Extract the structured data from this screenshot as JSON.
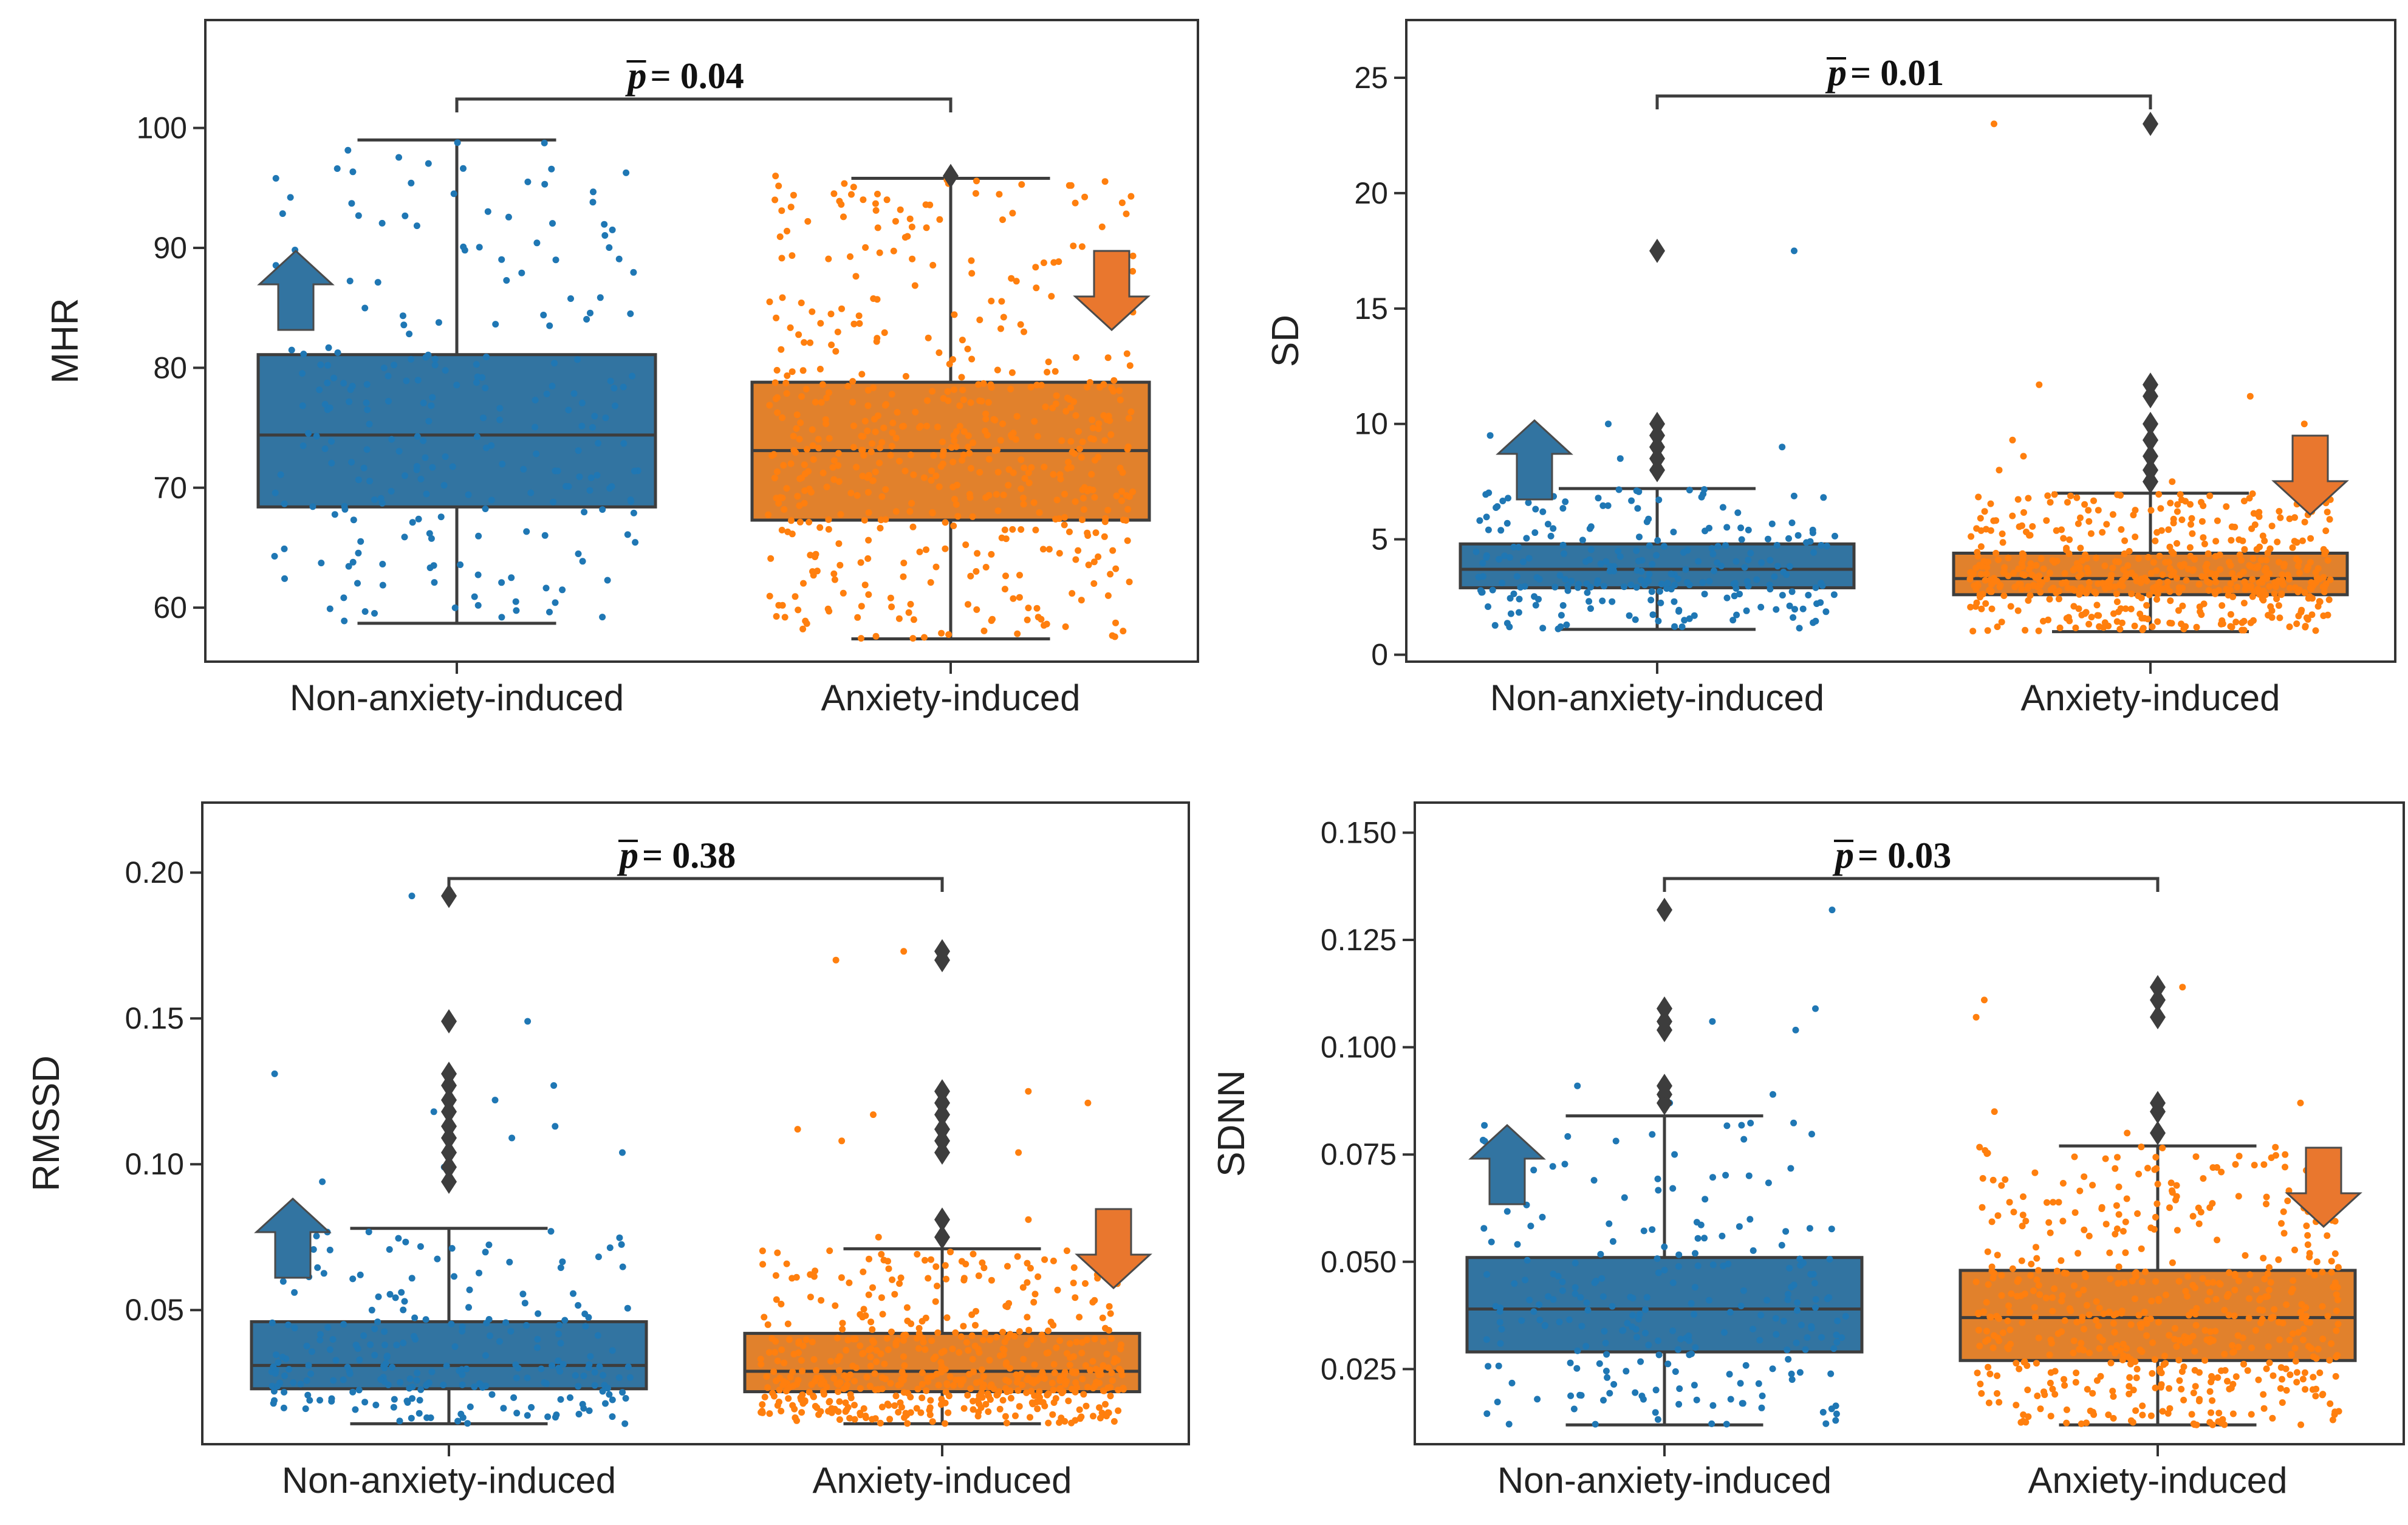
{
  "colors": {
    "non_anxiety": "#1f77b4",
    "non_anxiety_box": "#3274a1",
    "anxiety": "#ff7f0e",
    "anxiety_box": "#e1812c",
    "arrow_blue": "#3274a1",
    "arrow_orange": "#e9772e",
    "line": "#3d3d3d"
  },
  "chart_data": [
    {
      "type": "box",
      "ylabel": "MHR",
      "categories": [
        "Non-anxiety-induced",
        "Anxiety-induced"
      ],
      "ylim": [
        55.5,
        109
      ],
      "yticks": [
        60,
        70,
        80,
        90,
        100
      ],
      "ytick_labels": [
        "60",
        "70",
        "80",
        "90",
        "100"
      ],
      "p_value": "= 0.04",
      "arrows": [
        "up",
        "down"
      ],
      "series": [
        {
          "name": "Non-anxiety-induced",
          "n_points": 240,
          "whisker_low": 58.7,
          "q1": 68.4,
          "median": 74.4,
          "q3": 81.1,
          "whisker_high": 99.0,
          "outliers": []
        },
        {
          "name": "Anxiety-induced",
          "n_points": 560,
          "whisker_low": 57.4,
          "q1": 67.3,
          "median": 73.1,
          "q3": 78.8,
          "whisker_high": 95.8,
          "outliers": [
            96.0
          ]
        }
      ]
    },
    {
      "type": "box",
      "ylabel": "SD",
      "categories": [
        "Non-anxiety-induced",
        "Anxiety-induced"
      ],
      "ylim": [
        -0.3,
        27.5
      ],
      "yticks": [
        0,
        5,
        10,
        15,
        20,
        25
      ],
      "ytick_labels": [
        "0",
        "5",
        "10",
        "15",
        "20",
        "25"
      ],
      "p_value": "= 0.01",
      "arrows": [
        "up",
        "down"
      ],
      "series": [
        {
          "name": "Non-anxiety-induced",
          "n_points": 240,
          "whisker_low": 1.1,
          "q1": 2.9,
          "median": 3.7,
          "q3": 4.8,
          "whisker_high": 7.2,
          "outliers": [
            8.0,
            8.5,
            9.0,
            9.5,
            10.0,
            17.5
          ]
        },
        {
          "name": "Anxiety-induced",
          "n_points": 560,
          "whisker_low": 1.0,
          "q1": 2.6,
          "median": 3.3,
          "q3": 4.4,
          "whisker_high": 7.0,
          "outliers": [
            7.5,
            8.0,
            8.6,
            9.3,
            10.0,
            11.2,
            11.7,
            23.0
          ]
        }
      ]
    },
    {
      "type": "box",
      "ylabel": "RMSSD",
      "categories": [
        "Non-anxiety-induced",
        "Anxiety-induced"
      ],
      "ylim": [
        0.004,
        0.224
      ],
      "yticks": [
        0.05,
        0.1,
        0.15,
        0.2
      ],
      "ytick_labels": [
        "0.05",
        "0.10",
        "0.15",
        "0.20"
      ],
      "p_value": "= 0.38",
      "arrows": [
        "up",
        "down"
      ],
      "series": [
        {
          "name": "Non-anxiety-induced",
          "n_points": 240,
          "whisker_low": 0.011,
          "q1": 0.023,
          "median": 0.031,
          "q3": 0.046,
          "whisker_high": 0.078,
          "outliers": [
            0.094,
            0.099,
            0.104,
            0.109,
            0.113,
            0.118,
            0.122,
            0.127,
            0.131,
            0.149,
            0.192
          ]
        },
        {
          "name": "Anxiety-induced",
          "n_points": 560,
          "whisker_low": 0.011,
          "q1": 0.022,
          "median": 0.029,
          "q3": 0.042,
          "whisker_high": 0.071,
          "outliers": [
            0.075,
            0.081,
            0.104,
            0.108,
            0.112,
            0.117,
            0.121,
            0.125,
            0.17,
            0.173
          ]
        }
      ]
    },
    {
      "type": "box",
      "ylabel": "SDNN",
      "categories": [
        "Non-anxiety-induced",
        "Anxiety-induced"
      ],
      "ylim": [
        0.0075,
        0.157
      ],
      "yticks": [
        0.025,
        0.05,
        0.075,
        0.1,
        0.125,
        0.15
      ],
      "ytick_labels": [
        "0.025",
        "0.050",
        "0.075",
        "0.100",
        "0.125",
        "0.150"
      ],
      "p_value": "= 0.03",
      "arrows": [
        "up",
        "down"
      ],
      "series": [
        {
          "name": "Non-anxiety-induced",
          "n_points": 240,
          "whisker_low": 0.012,
          "q1": 0.029,
          "median": 0.039,
          "q3": 0.051,
          "whisker_high": 0.084,
          "outliers": [
            0.087,
            0.089,
            0.091,
            0.104,
            0.106,
            0.109,
            0.132
          ]
        },
        {
          "name": "Anxiety-induced",
          "n_points": 560,
          "whisker_low": 0.012,
          "q1": 0.027,
          "median": 0.037,
          "q3": 0.048,
          "whisker_high": 0.077,
          "outliers": [
            0.08,
            0.085,
            0.087,
            0.107,
            0.111,
            0.114
          ]
        }
      ]
    }
  ]
}
